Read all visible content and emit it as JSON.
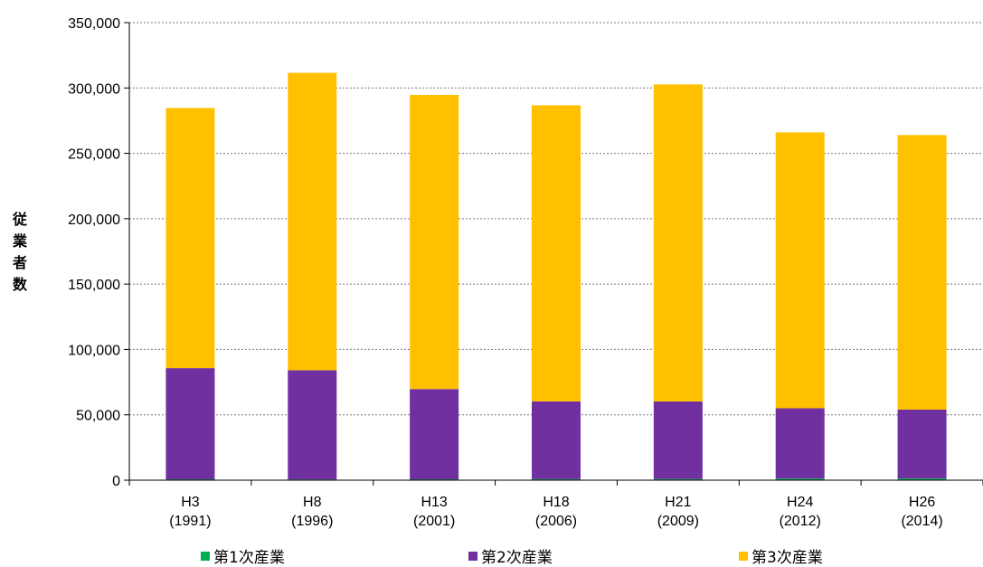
{
  "chart_data": {
    "type": "bar",
    "stacked": true,
    "categories": [
      [
        "H3",
        "(1991)"
      ],
      [
        "H8",
        "(1996)"
      ],
      [
        "H13",
        "(2001)"
      ],
      [
        "H18",
        "(2006)"
      ],
      [
        "H21",
        "(2009)"
      ],
      [
        "H24",
        "(2012)"
      ],
      [
        "H26",
        "(2014)"
      ]
    ],
    "series": [
      {
        "name": "第1次産業",
        "color": "#00b050",
        "values": [
          700,
          600,
          700,
          800,
          900,
          1200,
          1300
        ]
      },
      {
        "name": "第2次産業",
        "color": "#7030a0",
        "values": [
          85000,
          83500,
          69000,
          59500,
          59300,
          53800,
          52700
        ]
      },
      {
        "name": "第3次産業",
        "color": "#ffc000",
        "values": [
          199000,
          227500,
          225000,
          226500,
          242500,
          211000,
          210000
        ]
      }
    ],
    "ylabel": "従業者数",
    "ylim": [
      0,
      350000
    ],
    "yticks": [
      "0",
      "50,000",
      "100,000",
      "150,000",
      "200,000",
      "250,000",
      "300,000",
      "350,000"
    ],
    "grid": "horizontal dashed",
    "legend_position": "bottom"
  }
}
